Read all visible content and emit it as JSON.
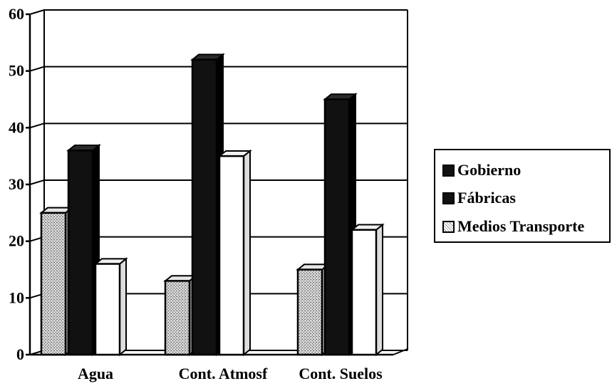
{
  "chart_data": {
    "type": "bar",
    "categories": [
      "Agua",
      "Cont. Atmosf",
      "Cont. Suelos"
    ],
    "series": [
      {
        "name": "Medios Transporte",
        "values": [
          25,
          13,
          15
        ]
      },
      {
        "name": "Gobierno",
        "values": [
          36,
          52,
          45
        ]
      },
      {
        "name": "Fábricas",
        "values": [
          16,
          35,
          22
        ]
      }
    ],
    "ylim": [
      0,
      60
    ],
    "yticks": [
      "0",
      "10",
      "20",
      "30",
      "40",
      "50",
      "60"
    ],
    "grid": true,
    "three_d": true,
    "legend": {
      "position": "right",
      "entries": [
        {
          "label": "Gobierno",
          "swatch": "solid-black"
        },
        {
          "label": "Fábricas",
          "swatch": "solid-black"
        },
        {
          "label": "Medios Transporte",
          "swatch": "dotted-white"
        }
      ]
    },
    "colors": {
      "dark": "#111111",
      "stipple": "#b4b4b4",
      "light": "#ffffff"
    }
  }
}
